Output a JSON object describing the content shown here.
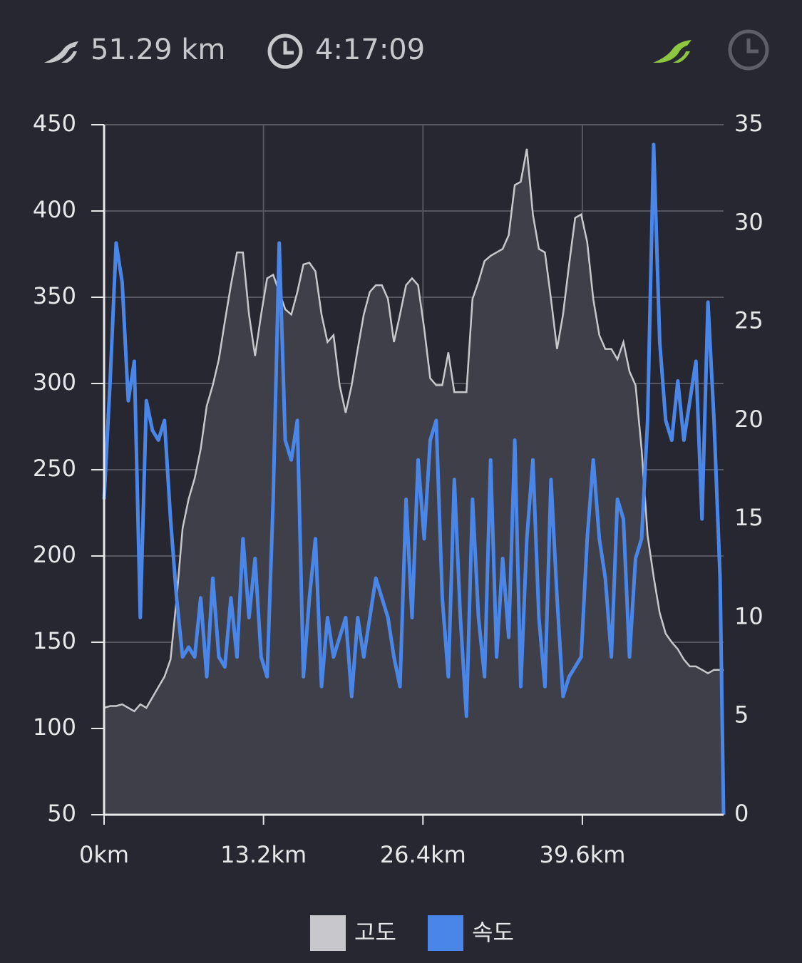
{
  "header": {
    "distance": "51.29 km",
    "duration": "4:17:09"
  },
  "chart_data": {
    "type": "area-line",
    "x": [
      0,
      0.5,
      1,
      1.5,
      2,
      2.5,
      3,
      3.5,
      4,
      4.5,
      5,
      5.5,
      6,
      6.5,
      7,
      7.5,
      8,
      8.5,
      9,
      9.5,
      10,
      10.5,
      11,
      11.5,
      12,
      12.5,
      13,
      13.5,
      14,
      14.5,
      15,
      15.5,
      16,
      16.5,
      17,
      17.5,
      18,
      18.5,
      19,
      19.5,
      20,
      20.5,
      21,
      21.5,
      22,
      22.5,
      23,
      23.5,
      24,
      24.5,
      25,
      25.5,
      26,
      26.5,
      27,
      27.5,
      28,
      28.5,
      29,
      29.5,
      30,
      30.5,
      31,
      31.5,
      32,
      32.5,
      33,
      33.5,
      34,
      34.5,
      35,
      35.5,
      36,
      36.5,
      37,
      37.5,
      38,
      38.5,
      39,
      39.5,
      40,
      40.5,
      41,
      41.5,
      42,
      42.5,
      43,
      43.5,
      44,
      44.5,
      45,
      45.5,
      46,
      46.5,
      47,
      47.5,
      48,
      48.5,
      49,
      49.5,
      50,
      50.5,
      51,
      51.29
    ],
    "series": [
      {
        "name": "고도",
        "color": "#c8c8cc",
        "axis": "y",
        "values": [
          112,
          113,
          113,
          114,
          112,
          110,
          114,
          112,
          118,
          124,
          130,
          140,
          175,
          216,
          233,
          245,
          262,
          287,
          299,
          314,
          336,
          357,
          376,
          376,
          340,
          316,
          340,
          361,
          363,
          353,
          343,
          340,
          353,
          369,
          370,
          365,
          340,
          324,
          328,
          299,
          283,
          299,
          320,
          340,
          353,
          357,
          357,
          349,
          324,
          340,
          357,
          361,
          357,
          332,
          303,
          299,
          299,
          318,
          295,
          295,
          295,
          349,
          359,
          371,
          374,
          376,
          378,
          386,
          415,
          417,
          436,
          398,
          378,
          376,
          349,
          320,
          340,
          369,
          396,
          398,
          382,
          349,
          328,
          320,
          320,
          314,
          324,
          307,
          299,
          262,
          212,
          188,
          167,
          155,
          150,
          146,
          140,
          136,
          136,
          134,
          132,
          134,
          134,
          134
        ]
      },
      {
        "name": "속도",
        "color": "#4a86e8",
        "axis": "y2",
        "values": [
          16,
          22,
          29,
          27,
          21,
          23,
          10,
          21,
          19.5,
          19,
          20,
          15,
          11,
          8,
          8.5,
          8,
          11,
          7,
          12,
          8,
          7.5,
          11,
          8,
          14,
          10,
          13,
          8,
          7,
          16,
          29,
          19,
          18,
          20,
          7,
          11,
          14,
          6.5,
          10,
          8,
          9,
          10,
          6,
          10,
          8,
          10,
          12,
          11,
          10,
          8,
          6.5,
          16,
          10,
          18,
          14,
          19,
          20,
          11,
          7,
          17,
          10,
          5,
          16,
          10,
          7,
          18,
          8,
          13,
          9,
          19,
          6.5,
          14,
          18,
          10,
          6.5,
          17,
          11,
          6,
          7,
          7.5,
          8,
          14,
          18,
          14,
          12,
          8,
          16,
          15,
          8,
          13,
          14,
          20,
          34,
          24,
          20,
          19,
          22,
          19,
          21,
          23,
          15,
          26,
          20,
          12,
          0
        ]
      }
    ],
    "xlim": [
      0,
      51.29
    ],
    "xticks": [
      {
        "value": 0,
        "label": "0km"
      },
      {
        "value": 13.2,
        "label": "13.2km"
      },
      {
        "value": 26.4,
        "label": "26.4km"
      },
      {
        "value": 39.6,
        "label": "39.6km"
      }
    ],
    "ylim": [
      50,
      450
    ],
    "yticks": [
      50,
      100,
      150,
      200,
      250,
      300,
      350,
      400,
      450
    ],
    "y2lim": [
      0,
      35
    ],
    "y2ticks": [
      0,
      5,
      10,
      15,
      20,
      25,
      30,
      35
    ],
    "grid": true
  }
}
